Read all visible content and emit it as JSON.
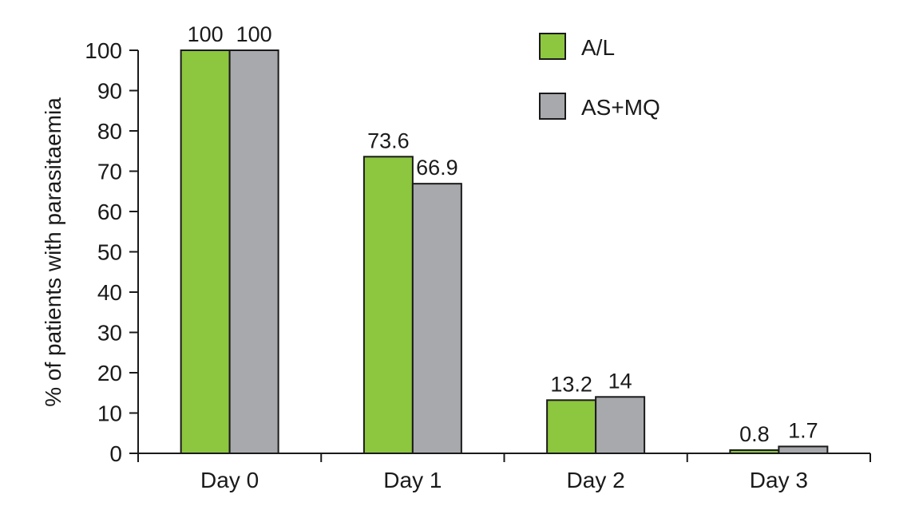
{
  "chart_data": {
    "type": "bar",
    "title": "",
    "xlabel": "",
    "ylabel": "% of patients with parasitaemia",
    "categories": [
      "Day 0",
      "Day 1",
      "Day 2",
      "Day 3"
    ],
    "series": [
      {
        "name": "A/L",
        "values": [
          100,
          73.6,
          13.2,
          0.8
        ],
        "labels": [
          "100",
          "73.6",
          "13.2",
          "0.8"
        ],
        "color": "#8dc63f"
      },
      {
        "name": "AS+MQ",
        "values": [
          100,
          66.9,
          14,
          1.7
        ],
        "labels": [
          "100",
          "66.9",
          "14",
          "1.7"
        ],
        "color": "#a7a9ac"
      }
    ],
    "ylim": [
      0,
      100
    ],
    "yticks": [
      "0",
      "10",
      "20",
      "30",
      "40",
      "50",
      "60",
      "70",
      "80",
      "90",
      "100"
    ],
    "grid": false,
    "legend_position": "top-right",
    "bar_edge_color": "#1a1a1a"
  }
}
